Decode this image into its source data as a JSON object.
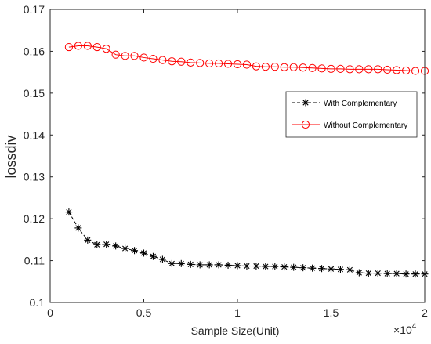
{
  "chart_data": {
    "type": "line",
    "title": "",
    "xlabel": "Sample Size(Unit)",
    "ylabel": "lossdiv",
    "x_multiplier_label": "×10",
    "x_multiplier_exp": "4",
    "xlim": [
      0,
      20000
    ],
    "ylim": [
      0.1,
      0.17
    ],
    "x_ticks": [
      0,
      5000,
      10000,
      15000,
      20000
    ],
    "x_tick_labels": [
      "0",
      "0.5",
      "1",
      "1.5",
      "2"
    ],
    "y_ticks": [
      0.1,
      0.11,
      0.12,
      0.13,
      0.14,
      0.15,
      0.16,
      0.17
    ],
    "y_tick_labels": [
      "0.1",
      "0.11",
      "0.12",
      "0.13",
      "0.14",
      "0.15",
      "0.16",
      "0.17"
    ],
    "grid": false,
    "legend_position": "right",
    "x": [
      1000,
      1500,
      2000,
      2500,
      3000,
      3500,
      4000,
      4500,
      5000,
      5500,
      6000,
      6500,
      7000,
      7500,
      8000,
      8500,
      9000,
      9500,
      10000,
      10500,
      11000,
      11500,
      12000,
      12500,
      13000,
      13500,
      14000,
      14500,
      15000,
      15500,
      16000,
      16500,
      17000,
      17500,
      18000,
      18500,
      19000,
      19500,
      20000
    ],
    "series": [
      {
        "name": "With Complementary",
        "color": "#000000",
        "line_style": "dashed",
        "marker": "asterisk",
        "values": [
          0.1216,
          0.1178,
          0.1149,
          0.1138,
          0.1139,
          0.1135,
          0.1129,
          0.1124,
          0.1118,
          0.111,
          0.1103,
          0.1093,
          0.1093,
          0.1091,
          0.109,
          0.109,
          0.109,
          0.1089,
          0.1088,
          0.1087,
          0.1087,
          0.1086,
          0.1086,
          0.1085,
          0.1084,
          0.1083,
          0.1082,
          0.1081,
          0.108,
          0.1079,
          0.1078,
          0.1071,
          0.107,
          0.107,
          0.1069,
          0.1069,
          0.1068,
          0.1068,
          0.1068
        ]
      },
      {
        "name": "Without Complementary",
        "color": "#ff0000",
        "line_style": "solid",
        "marker": "circle",
        "values": [
          0.161,
          0.1613,
          0.1613,
          0.161,
          0.1606,
          0.1592,
          0.1589,
          0.1589,
          0.1585,
          0.1582,
          0.1579,
          0.1576,
          0.1575,
          0.1573,
          0.1572,
          0.1571,
          0.1571,
          0.157,
          0.1569,
          0.1568,
          0.1564,
          0.1563,
          0.1563,
          0.1562,
          0.1562,
          0.1561,
          0.156,
          0.1559,
          0.1558,
          0.1558,
          0.1557,
          0.1557,
          0.1557,
          0.1557,
          0.1556,
          0.1555,
          0.1554,
          0.1553,
          0.1553
        ]
      }
    ]
  }
}
